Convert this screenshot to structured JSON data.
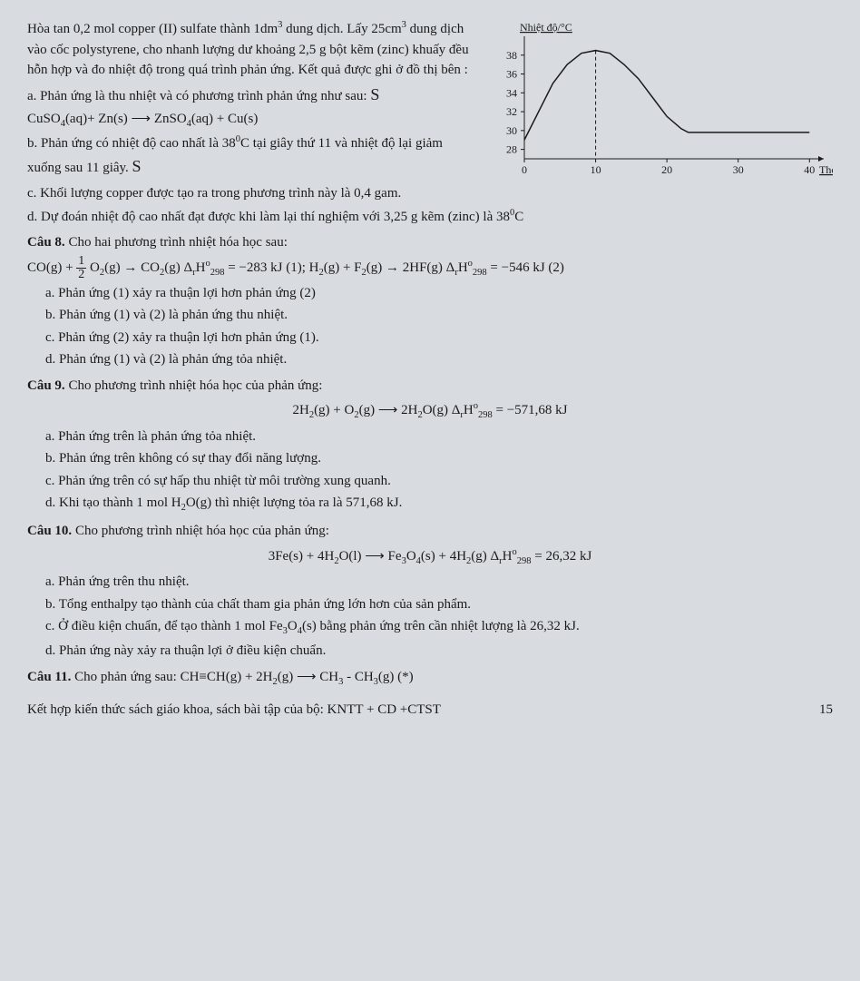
{
  "intro": {
    "line1": "Hòa tan 0,2 mol copper (II) sulfate thành 1dm",
    "line1_sup": "3",
    "line2": "dung dịch. Lấy 25cm",
    "line2_sup": "3",
    "line2_cont": " dung dịch vào cốc polystyrene, cho nhanh lượng dư khoảng 2,5 g bột kẽm (zinc) khuấy đều hỗn hợp và đo nhiệt độ trong quá trình phản ứng. Kết quả được ghi ở đồ thị bên :"
  },
  "chart": {
    "ylabel": "Nhiệt độ/°C",
    "xlabel": "Thời gian/s",
    "yticks": [
      28,
      30,
      32,
      34,
      36,
      38
    ],
    "xticks": [
      0,
      10,
      20,
      30,
      40
    ],
    "ylim": [
      27,
      40
    ],
    "xlim": [
      0,
      42
    ],
    "curve": [
      [
        0,
        29
      ],
      [
        2,
        32
      ],
      [
        4,
        35
      ],
      [
        6,
        37
      ],
      [
        8,
        38.2
      ],
      [
        10,
        38.5
      ],
      [
        12,
        38.2
      ],
      [
        14,
        37
      ],
      [
        16,
        35.5
      ],
      [
        18,
        33.5
      ],
      [
        20,
        31.5
      ],
      [
        22,
        30.2
      ],
      [
        23,
        29.8
      ],
      [
        25,
        29.8
      ],
      [
        30,
        29.8
      ],
      [
        35,
        29.8
      ],
      [
        40,
        29.8
      ]
    ],
    "dash_x": 10,
    "axis_color": "#1a1a1a",
    "curve_color": "#1a1a1a",
    "background": "#d8dce0",
    "font_size": 12
  },
  "q7": {
    "a": "a. Phản ứng là thu nhiệt và có phương trình phản ứng như sau:",
    "eq_left": "CuSO",
    "eq_left_sub": "4",
    "eq_left2": "(aq)+ Zn(s) ",
    "arrow": "⟶",
    "eq_right": " ZnSO",
    "eq_right_sub": "4",
    "eq_right2": "(aq) + Cu(s)",
    "b1": "b. Phản ứng có nhiệt độ cao nhất là 38",
    "b1_sup": "0",
    "b1_cont": "C tại giây thứ 11 và nhiệt độ lại giảm xuống sau 11 giây.",
    "c": "c. Khối lượng copper được tạo ra trong phương trình này là 0,4 gam.",
    "d1": "d. Dự đoán nhiệt độ cao nhất đạt được khi làm lại thí nghiệm với 3,25 g kẽm (zinc) là 38",
    "d1_sup": "0",
    "d1_cont": "C"
  },
  "q8": {
    "title_bold": "Câu 8. ",
    "title": "Cho hai phương trình nhiệt hóa học sau:",
    "eq1_l": "CO(g) + ",
    "eq1_frac_num": "1",
    "eq1_frac_den": "2",
    "eq1_m": " O",
    "eq1_sub1": "2",
    "eq1_m2": "(g) → CO",
    "eq1_sub2": "2",
    "eq1_m3": "(g)   Δ",
    "eq1_sub3": "r",
    "eq1_H": "H",
    "eq1_sup": "o",
    "eq1_sub4": "298",
    "eq1_val": " = −283 kJ (1); H",
    "eq1_sub5": "2",
    "eq1_m4": "(g) + F",
    "eq1_sub6": "2",
    "eq1_m5": "(g) → 2HF(g)     Δ",
    "eq1_sub7": "r",
    "eq1_H2": "H",
    "eq1_sup2": "o",
    "eq1_sub8": "298",
    "eq1_val2": " = −546 kJ  (2)",
    "a": "a. Phản ứng (1) xảy ra thuận lợi hơn phản ứng (2)",
    "b": "b. Phản ứng (1) và (2) là phản ứng thu nhiệt.",
    "c": "c. Phản ứng (2) xảy ra thuận lợi hơn phản ứng (1).",
    "d": "d. Phản ứng (1) và (2) là phản ứng tỏa nhiệt."
  },
  "q9": {
    "title_bold": "Câu 9. ",
    "title": "Cho phương trình nhiệt hóa học của phản ứng:",
    "eq": "2H",
    "eq_sub1": "2",
    "eq_m1": "(g) + O",
    "eq_sub2": "2",
    "eq_m2": "(g) ⟶ 2H",
    "eq_sub3": "2",
    "eq_m3": "O(g)   Δ",
    "eq_sub4": "r",
    "eq_H": "H",
    "eq_sup": "o",
    "eq_sub5": "298",
    "eq_val": " = −571,68 kJ",
    "a": "a. Phản ứng trên là phản ứng tỏa nhiệt.",
    "b": "b. Phản ứng trên không có sự thay đổi năng lượng.",
    "c": "c. Phản ứng trên có sự hấp thu nhiệt từ môi trường xung quanh.",
    "d1": "d. Khi tạo thành 1 mol H",
    "d_sub": "2",
    "d2": "O(g) thì nhiệt lượng tỏa ra là 571,68 kJ."
  },
  "q10": {
    "title_bold": "Câu 10. ",
    "title": "Cho phương trình nhiệt hóa học của phản ứng:",
    "eq": "3Fe(s) + 4H",
    "eq_sub1": "2",
    "eq_m1": "O(l) ⟶ Fe",
    "eq_sub2": "3",
    "eq_m2": "O",
    "eq_sub3": "4",
    "eq_m3": "(s) + 4H",
    "eq_sub4": "2",
    "eq_m4": "(g)   Δ",
    "eq_sub5": "r",
    "eq_H": "H",
    "eq_sup": "o",
    "eq_sub6": "298",
    "eq_val": " = 26,32 kJ",
    "a": "a. Phản ứng trên thu nhiệt.",
    "b": "b. Tổng enthalpy tạo thành của chất tham gia phản ứng lớn hơn của sản phẩm.",
    "c1": "c. Ở điều kiện chuẩn, để tạo thành 1 mol Fe",
    "c_sub1": "3",
    "c2": "O",
    "c_sub2": "4",
    "c3": "(s) bằng phản ứng trên cần nhiệt lượng là 26,32 kJ.",
    "d": "d. Phản ứng này xảy ra thuận lợi ở điều kiện chuẩn."
  },
  "q11": {
    "title_bold": "Câu 11. ",
    "title": "Cho phản ứng sau: CH≡CH(g) + 2H",
    "sub1": "2",
    "m1": "(g) ⟶ CH",
    "sub2": "3",
    "m2": " - CH",
    "sub3": "3",
    "m3": "(g)   (*)"
  },
  "footer": {
    "text": "Kết hợp kiến thức sách giáo khoa, sách bài tập của bộ: KNTT + CD +CTST",
    "page": "15"
  }
}
